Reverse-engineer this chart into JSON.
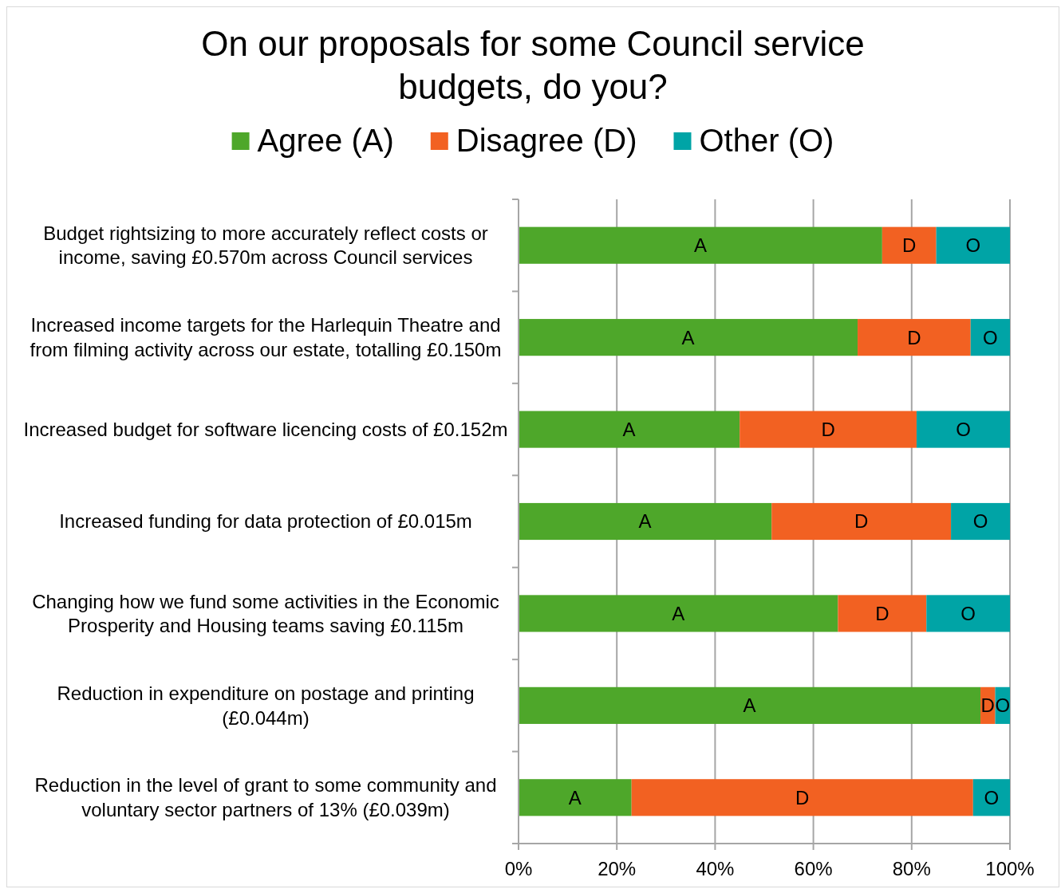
{
  "chart_data": {
    "type": "bar",
    "orientation": "horizontal",
    "stacked": true,
    "title": "On our proposals for some Council service budgets, do you?",
    "categories": [
      "Budget rightsizing to more accurately reflect costs or income, saving £0.570m across Council services",
      "Increased income targets for the Harlequin Theatre and from filming activity across our estate, totalling £0.150m",
      "Increased budget for software licencing costs of £0.152m",
      "Increased funding for data protection of £0.015m",
      "Changing how we fund some activities in the Economic Prosperity and Housing teams saving £0.115m",
      "Reduction in expenditure on postage and printing (£0.044m)",
      "Reduction in the level of grant to some community and voluntary sector partners of 13% (£0.039m)"
    ],
    "series": [
      {
        "name": "Agree (A)",
        "color": "#4ea72a",
        "values": [
          74,
          69,
          45,
          51.5,
          65,
          94,
          23
        ],
        "value_labels": [
          "A",
          "A",
          "A",
          "A",
          "A",
          "A",
          "A"
        ]
      },
      {
        "name": "Disagree (D)",
        "color": "#f26122",
        "values": [
          11,
          23,
          36,
          36.5,
          18,
          3,
          69.5
        ],
        "value_labels": [
          "D",
          "D",
          "D",
          "D",
          "D",
          "D",
          "D"
        ]
      },
      {
        "name": "Other (O)",
        "color": "#00a4a6",
        "values": [
          15,
          8,
          19,
          12,
          17,
          3,
          7.5
        ],
        "value_labels": [
          "O",
          "O",
          "O",
          "O",
          "O",
          "O",
          "O"
        ]
      }
    ],
    "xlim": [
      0,
      100
    ],
    "xticks": [
      {
        "value": 0,
        "label": "0%"
      },
      {
        "value": 20,
        "label": "20%"
      },
      {
        "value": 40,
        "label": "40%"
      },
      {
        "value": 60,
        "label": "60%"
      },
      {
        "value": 80,
        "label": "80%"
      },
      {
        "value": 100,
        "label": "100%"
      }
    ],
    "grid": "x",
    "legend": "top"
  }
}
